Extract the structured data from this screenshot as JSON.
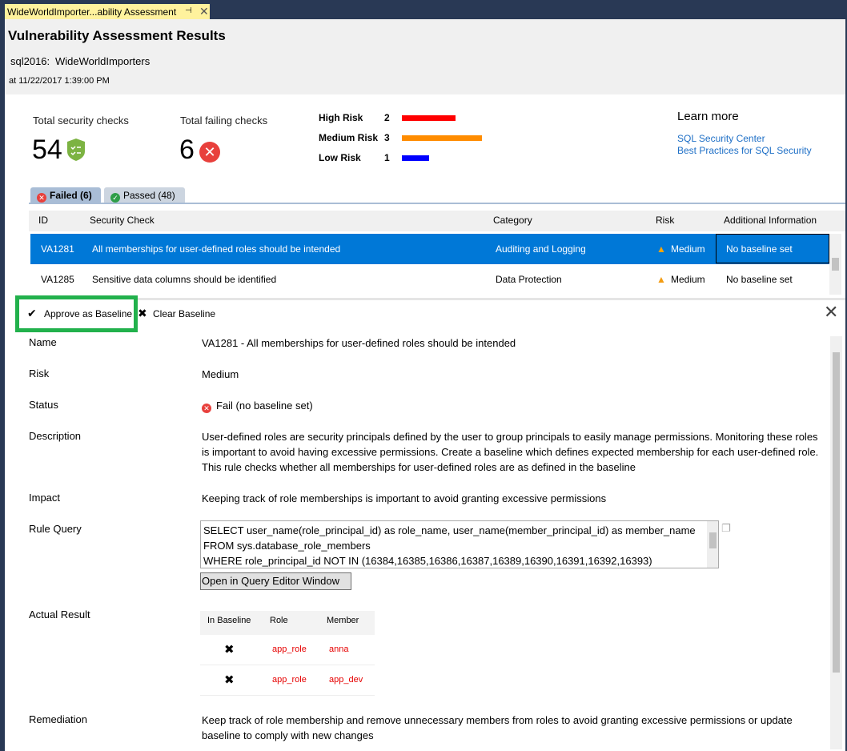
{
  "tab": {
    "title": "WideWorldImporter...ability Assessment",
    "pin_icon": "pin-icon",
    "close_icon": "close-icon"
  },
  "header": {
    "title": "Vulnerability Assessment Results",
    "server": "sql2016:",
    "database": "WideWorldImporters",
    "timestamp": "at 11/22/2017 1:39:00 PM"
  },
  "summary": {
    "total_label": "Total security checks",
    "total_value": "54",
    "failing_label": "Total failing checks",
    "failing_value": "6",
    "risks": [
      {
        "label": "High Risk",
        "count": "2",
        "color": "#ff0000"
      },
      {
        "label": "Medium Risk",
        "count": "3",
        "color": "#ff8c00"
      },
      {
        "label": "Low Risk",
        "count": "1",
        "color": "#0000ff"
      }
    ]
  },
  "learn_more": {
    "title": "Learn more",
    "links": [
      "SQL Security Center",
      "Best Practices for SQL Security"
    ]
  },
  "tabs": [
    {
      "label": "Failed",
      "count": "(6)",
      "active": true
    },
    {
      "label": "Passed",
      "count": "(48)",
      "active": false
    }
  ],
  "table": {
    "columns": [
      "ID",
      "Security Check",
      "Category",
      "Risk",
      "Additional Information"
    ],
    "rows": [
      {
        "id": "VA1281",
        "check": "All memberships for user-defined roles should be intended",
        "category": "Auditing and Logging",
        "risk": "Medium",
        "info": "No baseline set",
        "selected": true
      },
      {
        "id": "VA1285",
        "check": "Sensitive data columns should be identified",
        "category": "Data Protection",
        "risk": "Medium",
        "info": "No baseline set",
        "selected": false
      }
    ]
  },
  "toolbar": {
    "approve": "Approve as Baseline",
    "clear": "Clear Baseline"
  },
  "details": {
    "labels": {
      "name": "Name",
      "risk": "Risk",
      "status": "Status",
      "description": "Description",
      "impact": "Impact",
      "query": "Rule Query",
      "result": "Actual Result",
      "remediation": "Remediation"
    },
    "name": "VA1281 - All memberships for user-defined roles should be intended",
    "risk": "Medium",
    "status": "Fail (no baseline set)",
    "description": "User-defined roles are security principals defined by the user to group principals to easily manage permissions. Monitoring these roles is important to avoid having excessive permissions. Create a baseline which defines expected membership for each user-defined role. This rule checks whether all memberships for user-defined roles are as defined in the baseline",
    "impact": "Keeping track of role memberships is important to avoid granting excessive permissions",
    "query": [
      "SELECT user_name(role_principal_id) as role_name, user_name(member_principal_id) as member_name",
      "FROM sys.database_role_members",
      "WHERE role_principal_id NOT IN (16384,16385,16386,16387,16389,16390,16391,16392,16393)"
    ],
    "open_query": "Open in Query Editor Window",
    "result_columns": [
      "In Baseline",
      "Role",
      "Member"
    ],
    "result_rows": [
      {
        "in_baseline": "✖",
        "role": "app_role",
        "member": "anna"
      },
      {
        "in_baseline": "✖",
        "role": "app_role",
        "member": "app_dev"
      }
    ],
    "remediation": "Keep track of role membership and remove unnecessary members from roles to avoid granting excessive permissions or update baseline to comply with new changes"
  }
}
